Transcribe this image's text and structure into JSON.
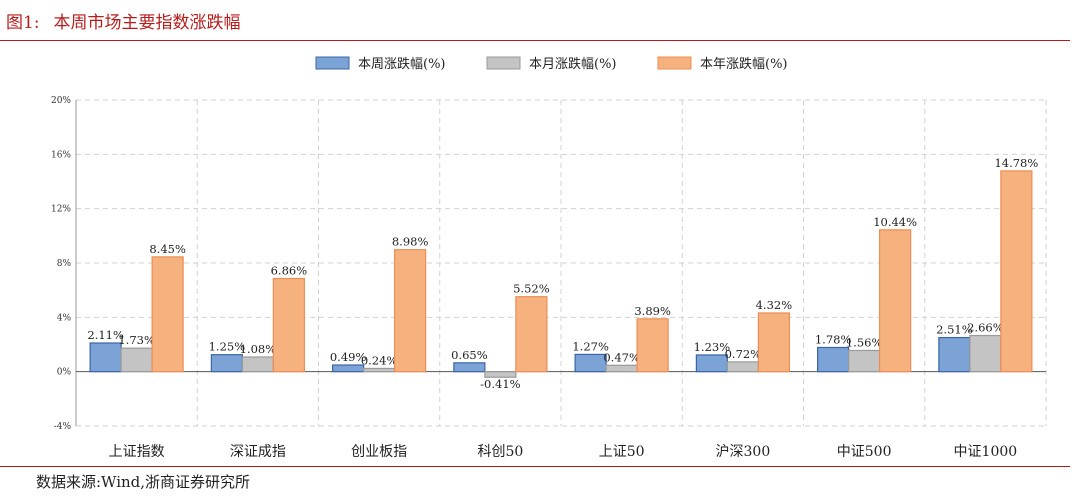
{
  "figure": {
    "label": "图1:",
    "title": "本周市场主要指数涨跌幅",
    "source": "数据来源:Wind,浙商证券研究所"
  },
  "colors": {
    "accent_red": "#b71c1c",
    "week": "#7ba3d6",
    "week_border": "#3b64a8",
    "month": "#c4c4c4",
    "month_border": "#9a9a9a",
    "year": "#f5b27e",
    "year_border": "#ee8c55"
  },
  "chart_data": {
    "type": "bar",
    "categories": [
      "上证指数",
      "深证成指",
      "创业板指",
      "科创50",
      "上证50",
      "沪深300",
      "中证500",
      "中证1000"
    ],
    "series": [
      {
        "name": "本周涨跌幅(%)",
        "values": [
          2.11,
          1.25,
          0.49,
          0.65,
          1.27,
          1.23,
          1.78,
          2.51
        ],
        "labels": [
          "2.11%",
          "1.25%",
          "0.49%",
          "0.65%",
          "1.27%",
          "1.23%",
          "1.78%",
          "2.51%"
        ]
      },
      {
        "name": "本月涨跌幅(%)",
        "values": [
          1.73,
          1.08,
          0.24,
          -0.41,
          0.47,
          0.72,
          1.56,
          2.66
        ],
        "labels": [
          "1.73%",
          "1.08%",
          "0.24%",
          "-0.41%",
          "0.47%",
          "0.72%",
          "1.56%",
          "2.66%"
        ]
      },
      {
        "name": "本年涨跌幅(%)",
        "values": [
          8.45,
          6.86,
          8.98,
          5.52,
          3.89,
          4.32,
          10.44,
          14.78
        ],
        "labels": [
          "8.45%",
          "6.86%",
          "8.98%",
          "5.52%",
          "3.89%",
          "4.32%",
          "10.44%",
          "14.78%"
        ]
      }
    ],
    "ylim": [
      -4,
      20
    ],
    "yticks": [
      -4,
      0,
      4,
      8,
      12,
      16,
      20
    ],
    "ytick_labels": [
      "-4%",
      "0%",
      "4%",
      "8%",
      "12%",
      "16%",
      "20%"
    ],
    "grid": true,
    "legend_position": "top-center"
  }
}
